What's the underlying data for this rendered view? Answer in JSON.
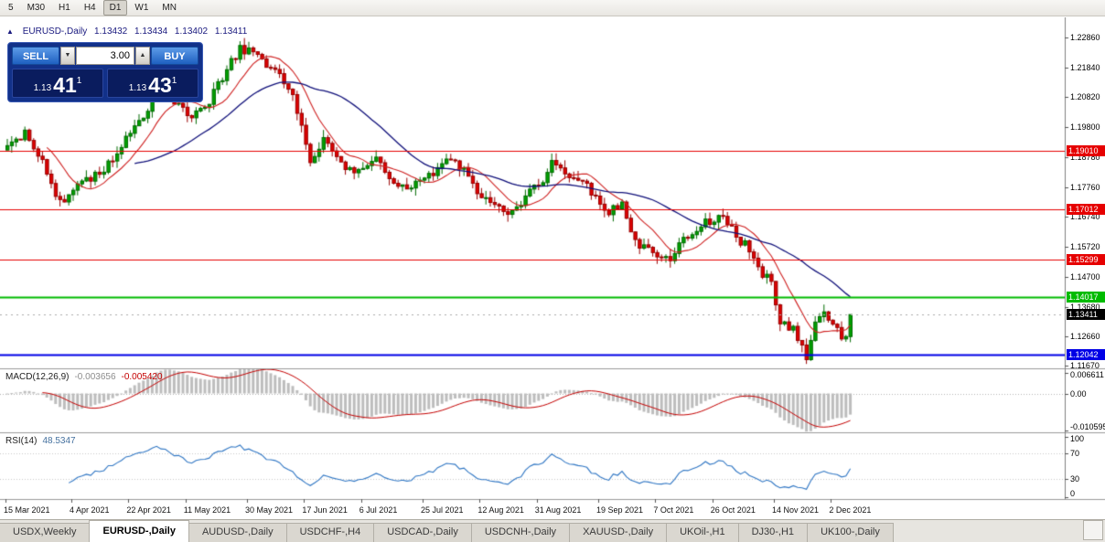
{
  "toolbar": {
    "timeframes": [
      "5",
      "M30",
      "H1",
      "H4",
      "D1",
      "W1",
      "MN"
    ],
    "active": "D1"
  },
  "icons": {
    "triangle_up": "▲",
    "triangle_down": "▼",
    "panel_collapse": "▲"
  },
  "header": {
    "symbol_period": "EURUSD-,Daily",
    "open": "1.13432",
    "high": "1.13434",
    "low": "1.13402",
    "close": "1.13411"
  },
  "one_click": {
    "sell_label": "SELL",
    "buy_label": "BUY",
    "lot_value": "3.00",
    "bid": {
      "prefix": "1.13",
      "big": "41",
      "pip": "1"
    },
    "ask": {
      "prefix": "1.13",
      "big": "43",
      "pip": "1"
    }
  },
  "indicators": {
    "macd": {
      "name": "MACD(12,26,9)",
      "value_main": "-0.003656",
      "value_signal": "-0.005420",
      "axis": [
        {
          "v": 0.006611,
          "text": "0.006611"
        },
        {
          "v": 0,
          "text": "0.00"
        },
        {
          "v": -0.010595,
          "text": "-0.010595"
        }
      ]
    },
    "rsi": {
      "name": "RSI(14)",
      "value": "48.5347",
      "axis": [
        {
          "v": 100,
          "text": "100"
        },
        {
          "v": 70,
          "text": "70"
        },
        {
          "v": 30,
          "text": "30"
        },
        {
          "v": 0,
          "text": "0"
        }
      ],
      "levels": [
        70,
        30
      ]
    }
  },
  "tabs": {
    "items": [
      "USDX,Weekly",
      "EURUSD-,Daily",
      "AUDUSD-,Daily",
      "USDCHF-,H4",
      "USDCAD-,Daily",
      "USDCNH-,Daily",
      "XAUUSD-,Daily",
      "UKOil-,H1",
      "DJ30-,H1",
      "UK100-,Daily"
    ],
    "active_index": 1
  },
  "chart_data": {
    "type": "candlestick",
    "symbol": "EURUSD-",
    "timeframe": "Daily",
    "bars": 193,
    "last_close": 1.13411,
    "y_range": [
      1.11577,
      1.23546
    ],
    "y_ticks": [
      {
        "v": 1.2286,
        "text": "1.22860"
      },
      {
        "v": 1.2184,
        "text": "1.21840"
      },
      {
        "v": 1.2082,
        "text": "1.20820"
      },
      {
        "v": 1.198,
        "text": "1.19800"
      },
      {
        "v": 1.1878,
        "text": "1.18780"
      },
      {
        "v": 1.1776,
        "text": "1.17760"
      },
      {
        "v": 1.1674,
        "text": "1.16740"
      },
      {
        "v": 1.1572,
        "text": "1.15720"
      },
      {
        "v": 1.147,
        "text": "1.14700"
      },
      {
        "v": 1.1368,
        "text": "1.13680"
      },
      {
        "v": 1.1266,
        "text": "1.12660"
      },
      {
        "v": 1.1167,
        "text": "1.11670"
      }
    ],
    "dates": [
      {
        "label": "15 Mar 2021",
        "bar": 0
      },
      {
        "label": "4 Apr 2021",
        "bar": 15
      },
      {
        "label": "22 Apr 2021",
        "bar": 28
      },
      {
        "label": "11 May 2021",
        "bar": 41
      },
      {
        "label": "30 May 2021",
        "bar": 55
      },
      {
        "label": "17 Jun 2021",
        "bar": 68
      },
      {
        "label": "6 Jul 2021",
        "bar": 81
      },
      {
        "label": "25 Jul 2021",
        "bar": 95
      },
      {
        "label": "12 Aug 2021",
        "bar": 108
      },
      {
        "label": "31 Aug 2021",
        "bar": 121
      },
      {
        "label": "19 Sep 2021",
        "bar": 135
      },
      {
        "label": "7 Oct 2021",
        "bar": 148
      },
      {
        "label": "26 Oct 2021",
        "bar": 161
      },
      {
        "label": "14 Nov 2021",
        "bar": 175
      },
      {
        "label": "2 Dec 2021",
        "bar": 188
      }
    ],
    "price_path": [
      [
        0,
        1.193
      ],
      [
        4,
        1.1958
      ],
      [
        8,
        1.1868
      ],
      [
        12,
        1.1722
      ],
      [
        16,
        1.1778
      ],
      [
        20,
        1.1812
      ],
      [
        24,
        1.187
      ],
      [
        28,
        1.1962
      ],
      [
        32,
        1.2032
      ],
      [
        34,
        1.212
      ],
      [
        38,
        1.2062
      ],
      [
        42,
        1.2012
      ],
      [
        46,
        1.2072
      ],
      [
        50,
        1.218
      ],
      [
        53,
        1.225
      ],
      [
        57,
        1.2222
      ],
      [
        61,
        1.2172
      ],
      [
        64,
        1.2122
      ],
      [
        67,
        1.1995
      ],
      [
        69,
        1.1868
      ],
      [
        72,
        1.193
      ],
      [
        76,
        1.1852
      ],
      [
        80,
        1.1826
      ],
      [
        84,
        1.1872
      ],
      [
        88,
        1.1792
      ],
      [
        92,
        1.1776
      ],
      [
        96,
        1.1816
      ],
      [
        100,
        1.187
      ],
      [
        104,
        1.1836
      ],
      [
        108,
        1.1736
      ],
      [
        112,
        1.1702
      ],
      [
        114,
        1.1668
      ],
      [
        118,
        1.1742
      ],
      [
        122,
        1.1802
      ],
      [
        124,
        1.1876
      ],
      [
        128,
        1.1812
      ],
      [
        131,
        1.1806
      ],
      [
        134,
        1.1732
      ],
      [
        137,
        1.1686
      ],
      [
        140,
        1.1722
      ],
      [
        143,
        1.1582
      ],
      [
        147,
        1.1556
      ],
      [
        151,
        1.1532
      ],
      [
        155,
        1.1612
      ],
      [
        159,
        1.1652
      ],
      [
        163,
        1.1682
      ],
      [
        166,
        1.1602
      ],
      [
        169,
        1.1566
      ],
      [
        172,
        1.1482
      ],
      [
        174,
        1.1446
      ],
      [
        176,
        1.1322
      ],
      [
        179,
        1.1292
      ],
      [
        182,
        1.12
      ],
      [
        184,
        1.1316
      ],
      [
        186,
        1.1342
      ],
      [
        188,
        1.1302
      ],
      [
        190,
        1.1266
      ],
      [
        191,
        1.1262
      ],
      [
        192,
        1.13411
      ]
    ],
    "levels": [
      {
        "price": 1.1901,
        "text": "1.19010",
        "color": "#e60000",
        "width": 1,
        "kind": "resistance"
      },
      {
        "price": 1.17012,
        "text": "1.17012",
        "color": "#e60000",
        "width": 1,
        "kind": "resistance"
      },
      {
        "price": 1.15299,
        "text": "1.15299",
        "color": "#e60000",
        "width": 1,
        "kind": "resistance"
      },
      {
        "price": 1.14017,
        "text": "1.14017",
        "color": "#00bb00",
        "width": 2,
        "kind": "level"
      },
      {
        "price": 1.12042,
        "text": "1.12042",
        "color": "#0000e6",
        "width": 2,
        "kind": "support"
      }
    ],
    "current_price": {
      "v": 1.13411,
      "text": "1.13411",
      "bg": "#000000"
    },
    "moving_averages": [
      {
        "type": "SMA",
        "period": 10,
        "color": "#cf2020"
      },
      {
        "type": "SMA",
        "period": 30,
        "color": "#10107a"
      }
    ],
    "macd_range": [
      -0.010595,
      0.006611
    ],
    "rsi_range": [
      0,
      100
    ]
  },
  "colors": {
    "bull": "#00a000",
    "bear": "#dd0000",
    "bull_border": "#006b00",
    "bear_border": "#990000",
    "macd_hist": "#bdbdbd",
    "macd_signal": "#c40000",
    "rsi_line": "#2f76c4",
    "separator": "#9a9a9a",
    "axis_line": "#808080"
  }
}
